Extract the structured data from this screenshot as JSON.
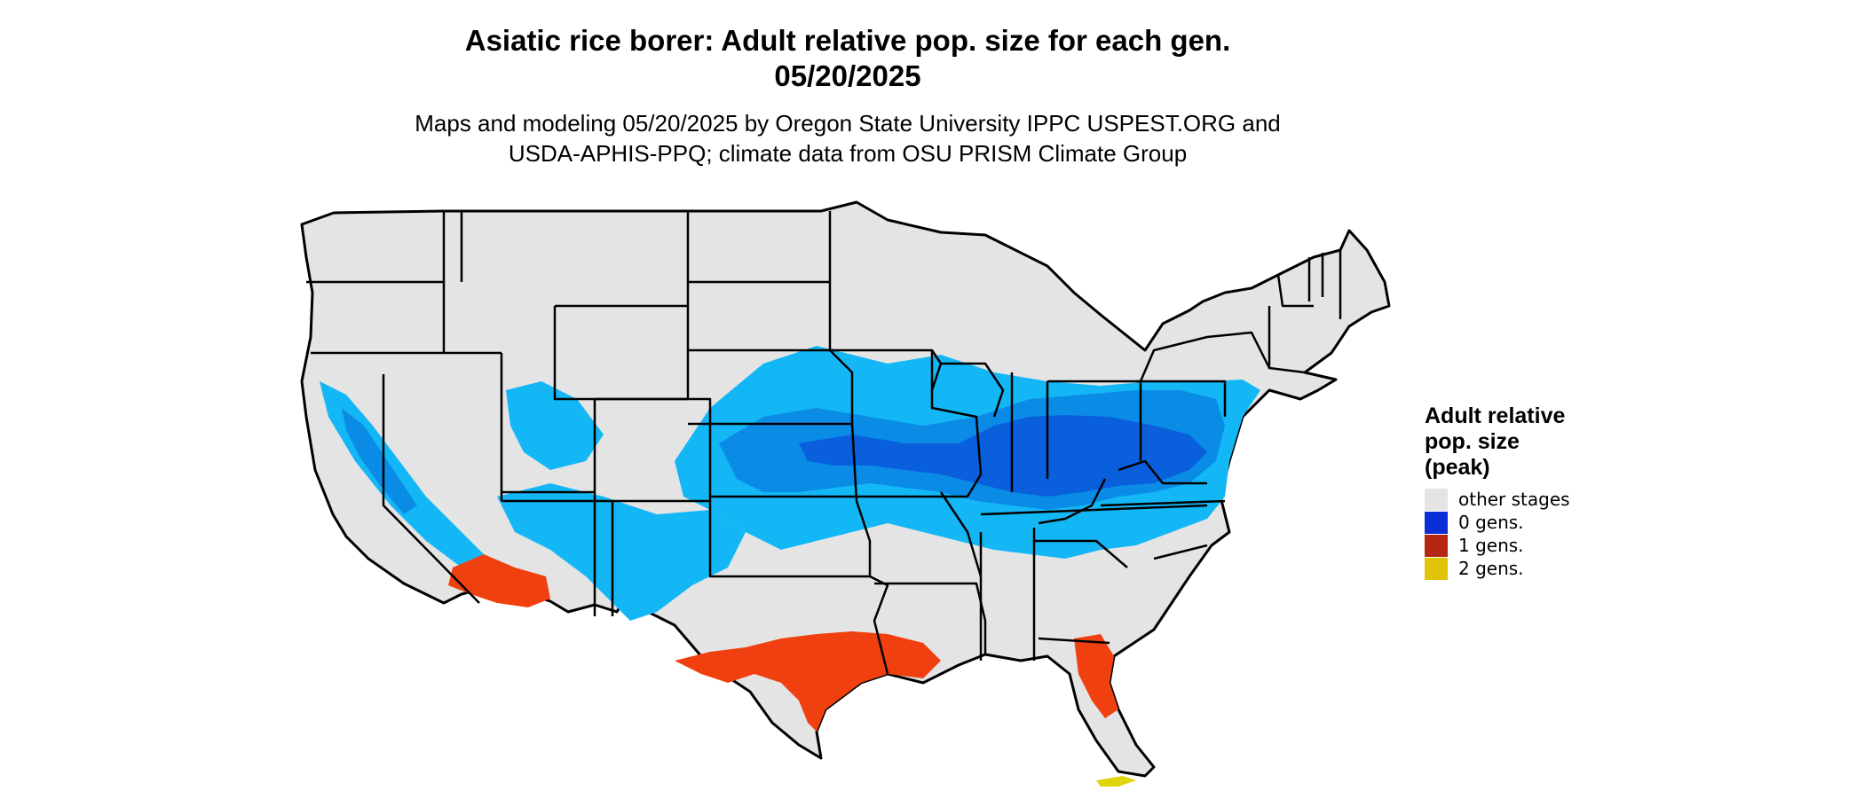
{
  "header": {
    "title_line1": "Asiatic rice borer: Adult relative pop. size for each gen.",
    "title_line2": "05/20/2025",
    "subtitle_line1": "Maps and modeling 05/20/2025 by Oregon State University IPPC USPEST.ORG and",
    "subtitle_line2": "USDA-APHIS-PPQ; climate data from OSU PRISM Climate Group"
  },
  "legend": {
    "title": "Adult relative pop. size (peak)",
    "items": [
      {
        "label": "other stages",
        "color": "#e4e4e4"
      },
      {
        "label": "0 gens.",
        "color": "#0a2fd6"
      },
      {
        "label": "1 gens.",
        "color": "#b52713"
      },
      {
        "label": "2 gens.",
        "color": "#e0c40a"
      }
    ]
  },
  "map_colors": {
    "land": "#e4e4e4",
    "borders": "#000000",
    "blue_light": "#14b7f5",
    "blue_mid": "#0a8be6",
    "blue_dark": "#0a5fdc",
    "orange": "#f0400f",
    "orange_dark": "#c83412",
    "yellow": "#e0d40a"
  }
}
